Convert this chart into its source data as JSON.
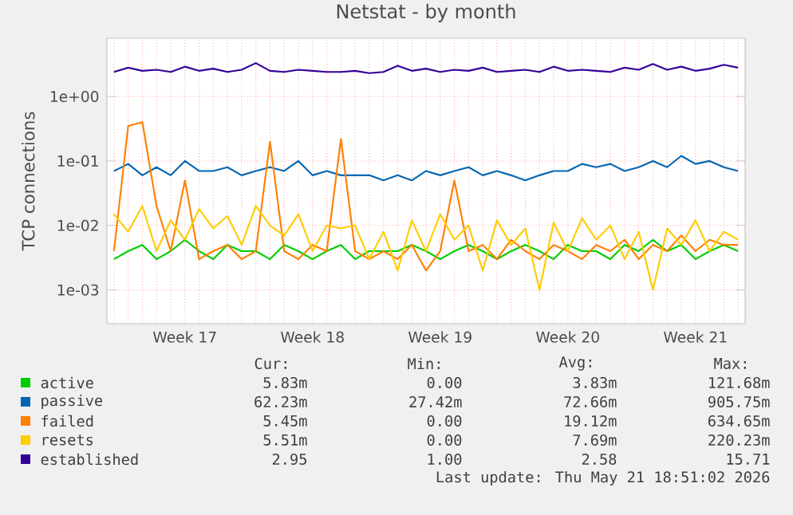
{
  "chart_data": {
    "type": "line",
    "title": "Netstat - by month",
    "ylabel": "TCP connections",
    "log": true,
    "grid": true,
    "legend": "bottom",
    "ylim": [
      0.0003,
      8
    ],
    "yticks": [
      {
        "value": 1,
        "label": "1e+00"
      },
      {
        "value": 0.1,
        "label": "1e-01"
      },
      {
        "value": 0.01,
        "label": "1e-02"
      },
      {
        "value": 0.001,
        "label": "1e-03"
      }
    ],
    "categories": [
      null,
      null,
      null,
      null,
      null,
      "Week 17",
      null,
      null,
      null,
      null,
      null,
      null,
      null,
      null,
      "Week 18",
      null,
      null,
      null,
      null,
      null,
      null,
      null,
      null,
      "Week 19",
      null,
      null,
      null,
      null,
      null,
      null,
      null,
      null,
      "Week 20",
      null,
      null,
      null,
      null,
      null,
      null,
      null,
      null,
      "Week 21",
      null,
      null,
      null
    ],
    "series": [
      {
        "name": "active",
        "color": "#00cc00",
        "values": [
          0.003,
          0.004,
          0.005,
          0.003,
          0.004,
          0.006,
          0.004,
          0.003,
          0.005,
          0.004,
          0.004,
          0.003,
          0.005,
          0.004,
          0.003,
          0.004,
          0.005,
          0.003,
          0.004,
          0.004,
          0.004,
          0.005,
          0.004,
          0.003,
          0.004,
          0.005,
          0.004,
          0.003,
          0.004,
          0.005,
          0.004,
          0.003,
          0.005,
          0.004,
          0.004,
          0.003,
          0.005,
          0.004,
          0.006,
          0.004,
          0.005,
          0.003,
          0.004,
          0.005,
          0.004
        ]
      },
      {
        "name": "passive",
        "color": "#0066b3",
        "values": [
          0.07,
          0.09,
          0.06,
          0.08,
          0.06,
          0.1,
          0.07,
          0.07,
          0.08,
          0.06,
          0.07,
          0.08,
          0.07,
          0.1,
          0.06,
          0.07,
          0.06,
          0.06,
          0.06,
          0.05,
          0.06,
          0.05,
          0.07,
          0.06,
          0.07,
          0.08,
          0.06,
          0.07,
          0.06,
          0.05,
          0.06,
          0.07,
          0.07,
          0.09,
          0.08,
          0.09,
          0.07,
          0.08,
          0.1,
          0.08,
          0.12,
          0.09,
          0.1,
          0.08,
          0.07
        ]
      },
      {
        "name": "failed",
        "color": "#ff8000",
        "values": [
          0.004,
          0.35,
          0.4,
          0.02,
          0.004,
          0.05,
          0.003,
          0.004,
          0.005,
          0.003,
          0.004,
          0.2,
          0.004,
          0.003,
          0.005,
          0.004,
          0.22,
          0.004,
          0.003,
          0.004,
          0.003,
          0.005,
          0.002,
          0.004,
          0.05,
          0.004,
          0.005,
          0.003,
          0.006,
          0.004,
          0.003,
          0.005,
          0.004,
          0.003,
          0.005,
          0.004,
          0.006,
          0.003,
          0.005,
          0.004,
          0.007,
          0.004,
          0.006,
          0.005,
          0.005
        ]
      },
      {
        "name": "resets",
        "color": "#ffcc00",
        "values": [
          0.015,
          0.008,
          0.02,
          0.004,
          0.012,
          0.006,
          0.018,
          0.009,
          0.014,
          0.005,
          0.02,
          0.01,
          0.007,
          0.015,
          0.004,
          0.01,
          0.009,
          0.01,
          0.003,
          0.008,
          0.002,
          0.012,
          0.004,
          0.015,
          0.006,
          0.01,
          0.002,
          0.012,
          0.005,
          0.009,
          0.001,
          0.011,
          0.004,
          0.013,
          0.006,
          0.01,
          0.003,
          0.008,
          0.001,
          0.009,
          0.005,
          0.012,
          0.004,
          0.008,
          0.006
        ]
      },
      {
        "name": "established",
        "color": "#330099",
        "values": [
          2.4,
          2.8,
          2.5,
          2.6,
          2.4,
          2.9,
          2.5,
          2.7,
          2.4,
          2.6,
          3.3,
          2.5,
          2.4,
          2.6,
          2.5,
          2.4,
          2.4,
          2.5,
          2.3,
          2.4,
          3.0,
          2.5,
          2.7,
          2.4,
          2.6,
          2.5,
          2.8,
          2.4,
          2.5,
          2.6,
          2.4,
          2.9,
          2.5,
          2.6,
          2.5,
          2.4,
          2.8,
          2.6,
          3.2,
          2.6,
          2.9,
          2.5,
          2.7,
          3.1,
          2.8
        ]
      }
    ],
    "annotations": [
      "Cur:",
      "Min:",
      "Avg:",
      "Max:",
      "5.83m",
      "0.00",
      "3.83m",
      "121.68m",
      "62.23m",
      "27.42m",
      "72.66m",
      "905.75m",
      "5.45m",
      "0.00",
      "19.12m",
      "634.65m",
      "5.51m",
      "0.00",
      "7.69m",
      "220.23m",
      "2.95",
      "1.00",
      "2.58",
      "15.71",
      "Last update: Thu May 21 18:51:02 2026"
    ]
  }
}
